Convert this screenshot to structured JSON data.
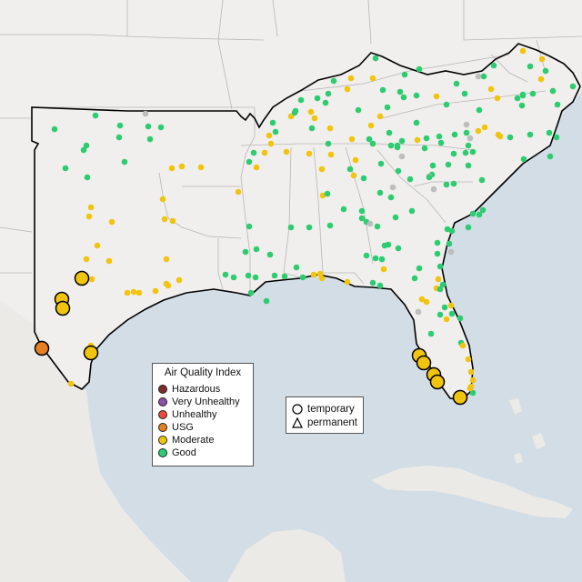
{
  "map": {
    "colors": {
      "water": "#d3dde6",
      "land": "#f1efed",
      "state_border": "#b8b6b4",
      "region_outline": "#000000",
      "dot_outline": "#555555",
      "marker_outline": "#000000"
    },
    "categories": {
      "hazardous": "#7e2c2c",
      "very_unhealthy": "#8e4fa8",
      "unhealthy": "#e74c3c",
      "usg": "#e67e22",
      "moderate": "#f1c40f",
      "good": "#2ecc71",
      "no_data": "#bdbdbd"
    }
  },
  "legend": {
    "title": "Air Quality Index",
    "items": [
      {
        "label": "Hazardous",
        "color": "#7e2c2c"
      },
      {
        "label": "Very Unhealthy",
        "color": "#8e4fa8"
      },
      {
        "label": "Unhealthy",
        "color": "#e74c3c"
      },
      {
        "label": "USG",
        "color": "#e67e22"
      },
      {
        "label": "Moderate",
        "color": "#f1c40f"
      },
      {
        "label": "Good",
        "color": "#2ecc71"
      }
    ]
  },
  "monitor_type_legend": {
    "temporary": "temporary",
    "permanent": "permanent"
  }
}
